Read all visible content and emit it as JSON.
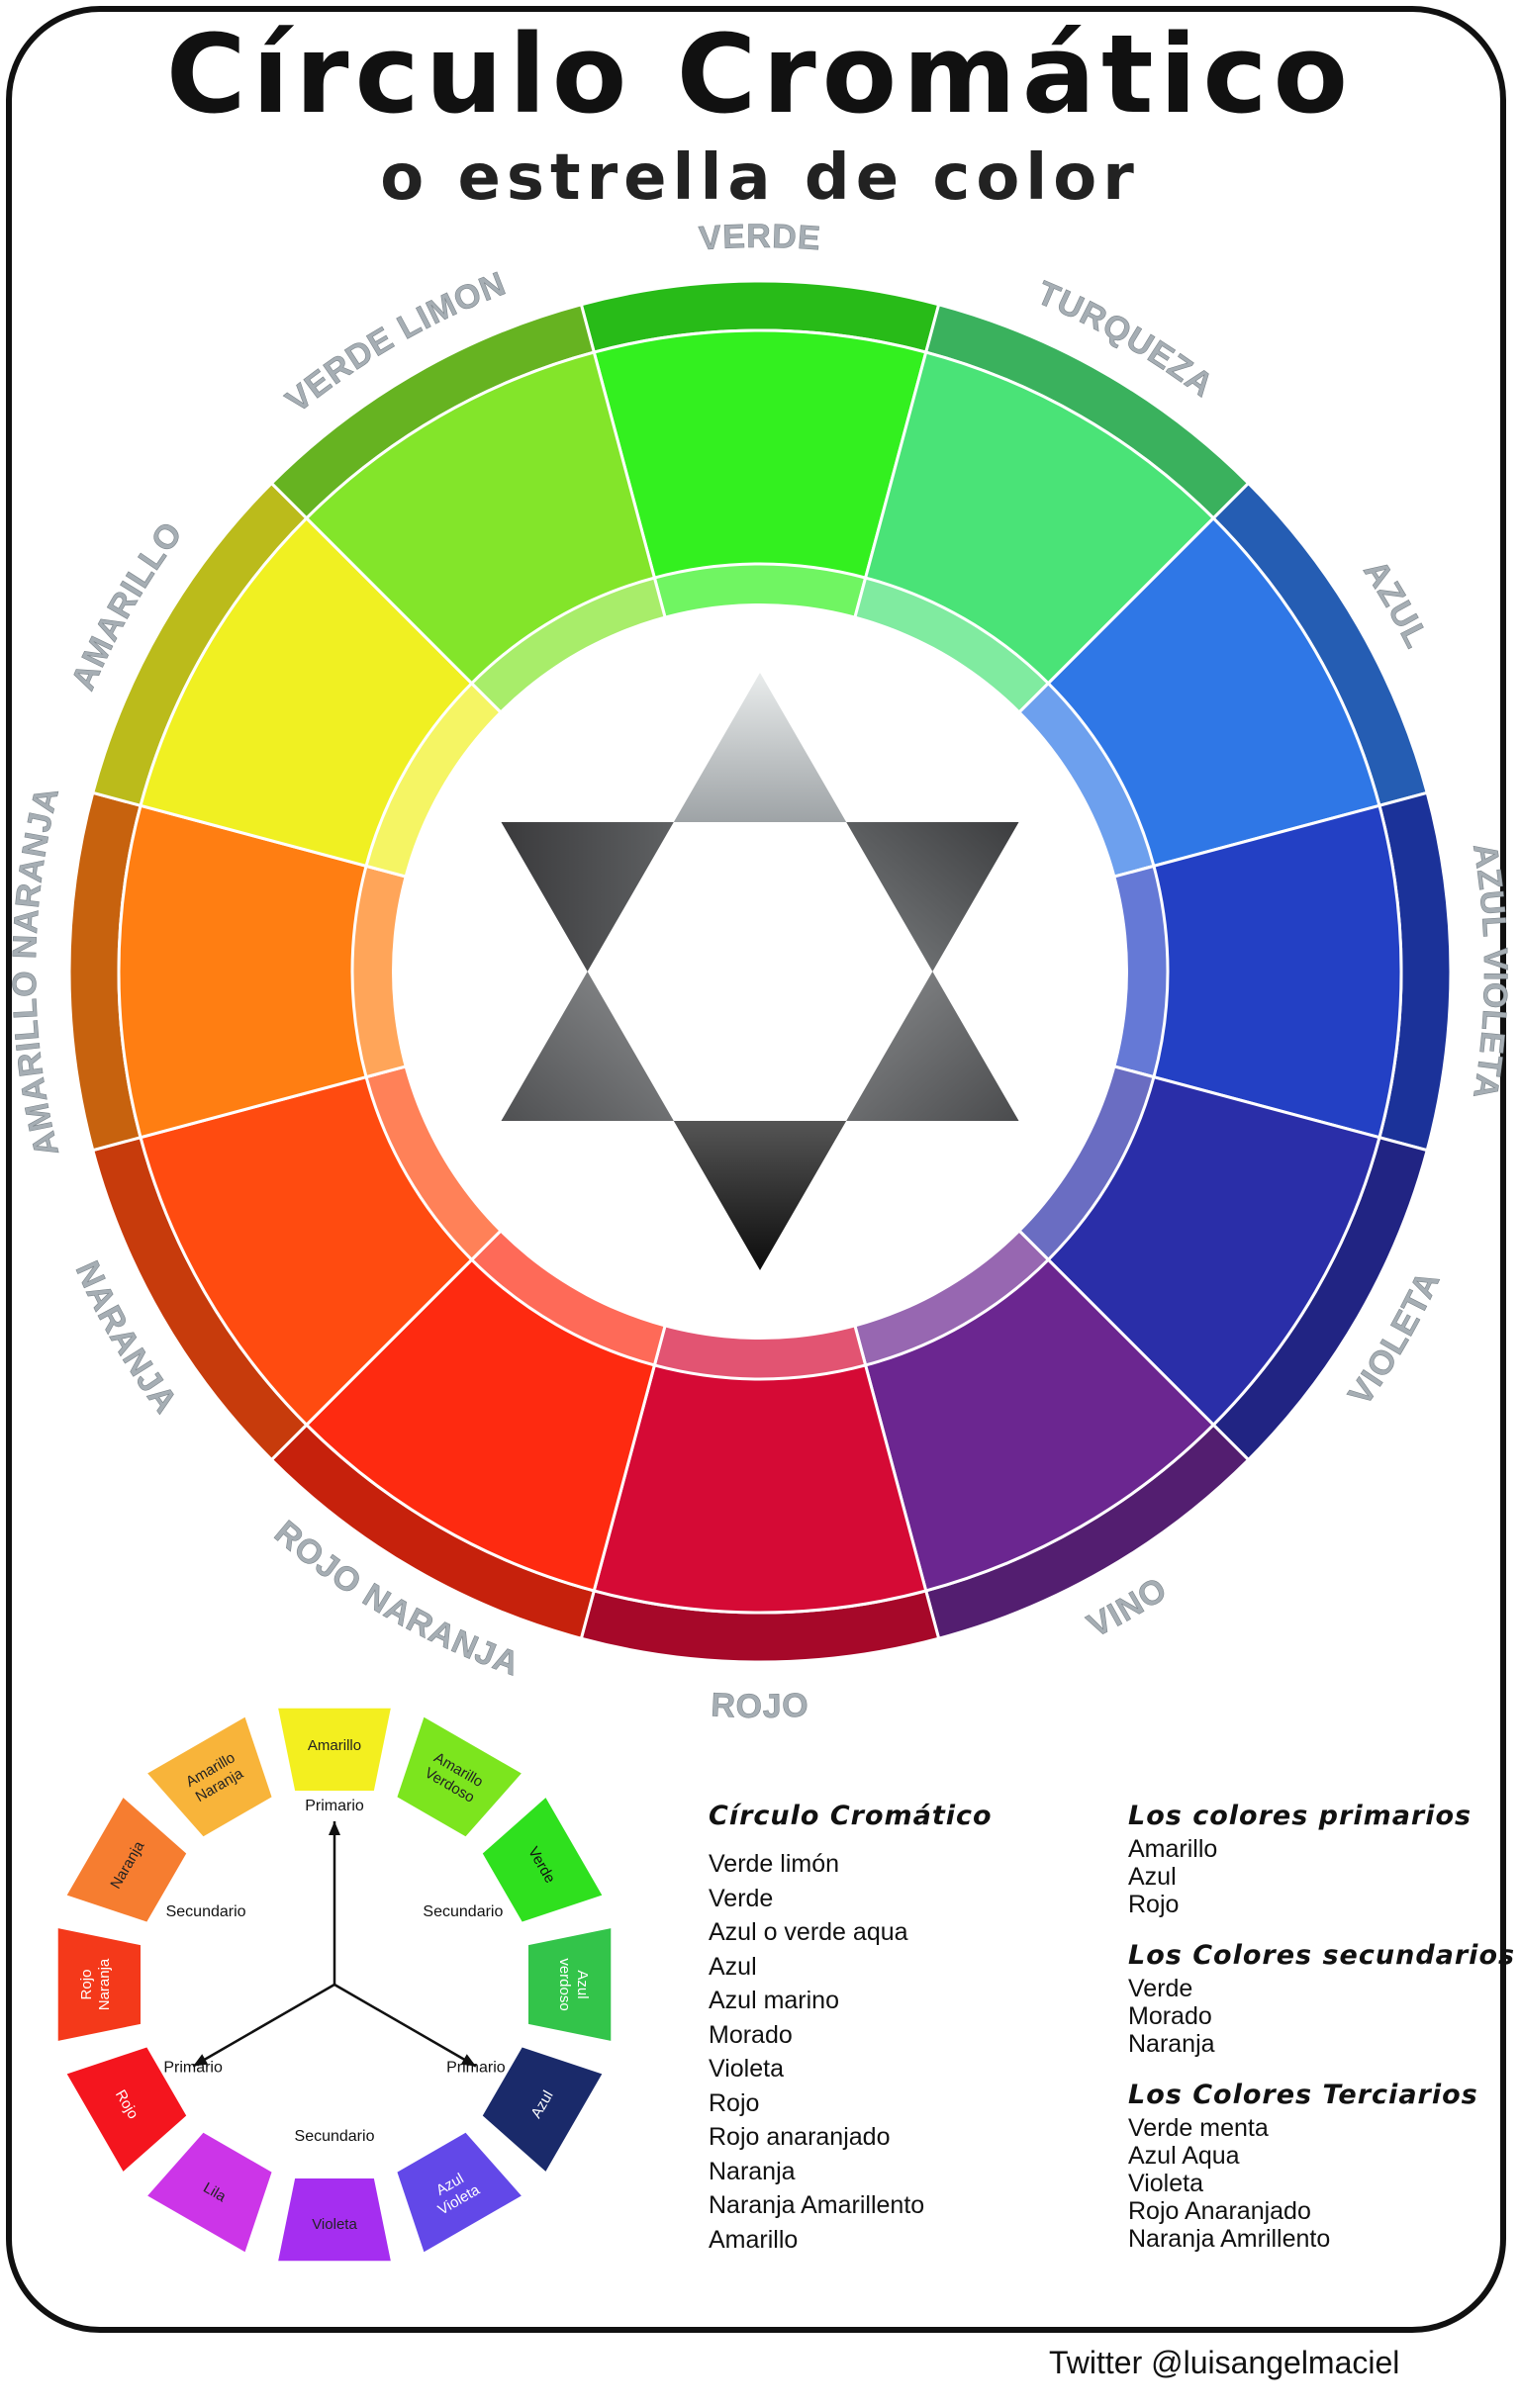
{
  "title": "Círculo Cromático",
  "subtitle": "o estrella de color",
  "wheel": {
    "segments": [
      {
        "label": "VERDE",
        "color": "#33f01f"
      },
      {
        "label": "TURQUEZA",
        "color": "#4ae377"
      },
      {
        "label": "AZUL",
        "color": "#2f77e6"
      },
      {
        "label": "AZUL VIOLETA",
        "color": "#2340c4"
      },
      {
        "label": "VIOLETA",
        "color": "#2a2ea8"
      },
      {
        "label": "VINO",
        "color": "#6b2690"
      },
      {
        "label": "ROJO",
        "color": "#d50a35"
      },
      {
        "label": "ROJO NARANJA",
        "color": "#fe2a10"
      },
      {
        "label": "NARANJA",
        "color": "#ff4b10"
      },
      {
        "label": "AMARILLO NARANJA",
        "color": "#ff7e12"
      },
      {
        "label": "AMARILLO",
        "color": "#f0f022"
      },
      {
        "label": "VERDE LIMON",
        "color": "#83e52a"
      }
    ]
  },
  "small_wheel": {
    "segments": [
      {
        "label": "Amarillo",
        "color": "#f3ef1f",
        "text_color": "#222222"
      },
      {
        "label": "Amarillo Verdoso",
        "color": "#7ce51e",
        "text_color": "#222222"
      },
      {
        "label": "Verde",
        "color": "#2fe01e",
        "text_color": "#111111"
      },
      {
        "label": "Azul verdoso",
        "color": "#33c44a",
        "text_color": "#ffffff"
      },
      {
        "label": "Azul",
        "color": "#1a2a6a",
        "text_color": "#ffffff"
      },
      {
        "label": "Azul Violeta",
        "color": "#6248e8",
        "text_color": "#ffffff"
      },
      {
        "label": "Violeta",
        "color": "#a52ef0",
        "text_color": "#222222"
      },
      {
        "label": "Lila",
        "color": "#cc35e8",
        "text_color": "#222222"
      },
      {
        "label": "Rojo",
        "color": "#f4151e",
        "text_color": "#ffffff"
      },
      {
        "label": "Rojo Naranja",
        "color": "#f4391a",
        "text_color": "#ffffff"
      },
      {
        "label": "Naranja",
        "color": "#f67d30",
        "text_color": "#222222"
      },
      {
        "label": "Amarillo Naranja",
        "color": "#f8b43a",
        "text_color": "#222222"
      }
    ],
    "inner_labels": [
      "Primario",
      "Secundario",
      "Secundario",
      "Primario",
      "Primario",
      "Secundario"
    ]
  },
  "list1": {
    "heading": "Círculo Cromático",
    "items": [
      "Verde limón",
      "Verde",
      "Azul o verde aqua",
      "Azul",
      "Azul marino",
      "Morado",
      "Violeta",
      "Rojo",
      "Rojo anaranjado",
      "Naranja",
      "Naranja Amarillento",
      "Amarillo"
    ]
  },
  "primarios": {
    "heading": "Los colores primarios",
    "items": [
      "Amarillo",
      "Azul",
      "Rojo"
    ]
  },
  "secundarios": {
    "heading": "Los Colores secundarios",
    "items": [
      "Verde",
      "Morado",
      "Naranja"
    ]
  },
  "terciarios": {
    "heading": "Los Colores Terciarios",
    "items": [
      "Verde menta",
      "Azul Aqua",
      "Violeta",
      "Rojo Anaranjado",
      "Naranja Amrillento"
    ]
  },
  "credit": "Twitter @luisangelmaciel"
}
